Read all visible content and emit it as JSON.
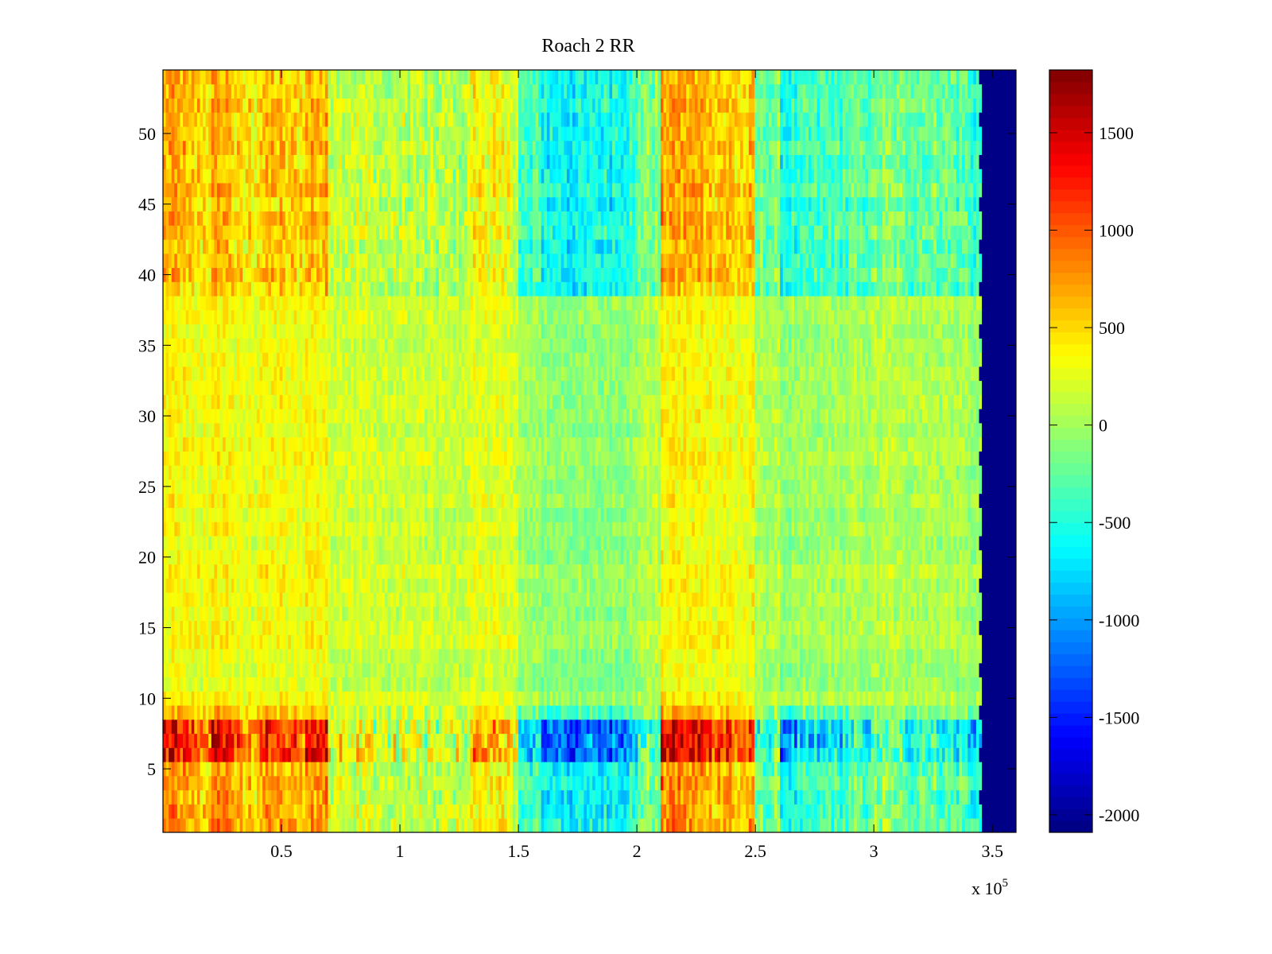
{
  "chart_data": {
    "type": "heatmap",
    "title": "Roach 2 RR",
    "xlabel": "",
    "ylabel": "",
    "x_multiplier_label": "x 10",
    "x_multiplier_exponent": "5",
    "xlim": [
      0,
      3.6
    ],
    "ylim": [
      0.5,
      54.5
    ],
    "rows": 54,
    "x_ticks": [
      "0.5",
      "1",
      "1.5",
      "2",
      "2.5",
      "3",
      "3.5"
    ],
    "x_tick_values": [
      0.5,
      1,
      1.5,
      2,
      2.5,
      3,
      3.5
    ],
    "y_ticks": [
      "5",
      "10",
      "15",
      "20",
      "25",
      "30",
      "35",
      "40",
      "45",
      "50"
    ],
    "y_tick_values": [
      5,
      10,
      15,
      20,
      25,
      30,
      35,
      40,
      45,
      50
    ],
    "colorbar": {
      "colormap": "jet",
      "clim": [
        -2090,
        1822
      ],
      "ticks": [
        "1500",
        "1000",
        "500",
        "0",
        "-500",
        "-1000",
        "-1500",
        "-2000"
      ],
      "tick_values": [
        1500,
        1000,
        500,
        0,
        -500,
        -1000,
        -1500,
        -2000
      ]
    },
    "column_profile_bin_width": 0.1,
    "column_profile": [
      900,
      700,
      900,
      600,
      800,
      700,
      900,
      300,
      200,
      100,
      100,
      50,
      100,
      500,
      300,
      -600,
      -800,
      -900,
      -800,
      -700,
      -200,
      1000,
      900,
      800,
      700,
      -300,
      -700,
      -600,
      -500,
      -400,
      -200,
      -300,
      -300,
      -400,
      -600
    ],
    "data_end_x": 3.45,
    "fill_value_after_end": -2090,
    "row_groups": [
      {
        "rows": [
          1,
          5
        ],
        "mean": 0,
        "amplitude": 0.8
      },
      {
        "rows": [
          6,
          8
        ],
        "mean": 0,
        "amplitude": 1.45
      },
      {
        "rows": [
          9,
          9
        ],
        "mean": 50,
        "amplitude": 0.6
      },
      {
        "rows": [
          10,
          38
        ],
        "mean": 120,
        "amplitude": 0.25
      },
      {
        "rows": [
          39,
          54
        ],
        "mean": 0,
        "amplitude": 0.7
      }
    ],
    "noise_amplitude": 320
  }
}
